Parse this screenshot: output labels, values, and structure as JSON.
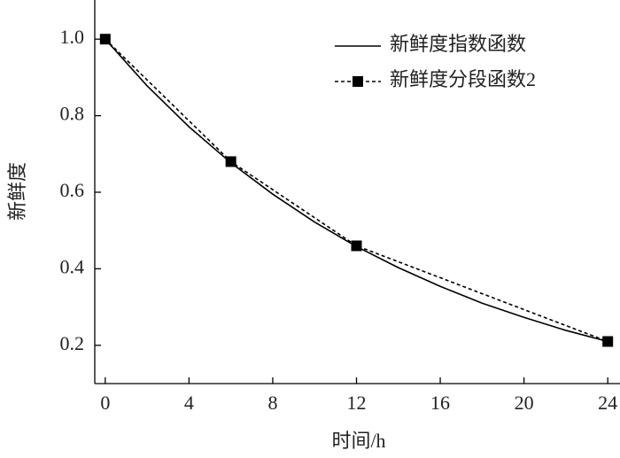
{
  "chart_data": {
    "type": "line",
    "xlabel": "时间/h",
    "ylabel": "新鲜度",
    "xlim": [
      -0.5,
      24.5
    ],
    "ylim": [
      0.1,
      1.1
    ],
    "xticks": [
      0,
      4,
      8,
      12,
      16,
      20,
      24
    ],
    "yticks": [
      0.2,
      0.4,
      0.6,
      0.8,
      {
        "value": 1,
        "label": "1.0"
      }
    ],
    "legend": "upper right",
    "series": [
      {
        "name": "新鲜度指数函数",
        "color": "#000000",
        "dash": false,
        "marker": false,
        "x": [
          0,
          2,
          4,
          6,
          8,
          10,
          12,
          14,
          16,
          18,
          20,
          22,
          24
        ],
        "values": [
          1,
          0.878,
          0.771,
          0.677,
          0.595,
          0.522,
          0.458,
          0.403,
          0.354,
          0.31,
          0.273,
          0.239,
          0.21
        ]
      },
      {
        "name": "新鲜度分段函数2",
        "color": "#000000",
        "dash": true,
        "marker": true,
        "x": [
          0,
          6,
          12,
          24
        ],
        "values": [
          1,
          0.68,
          0.46,
          0.21
        ]
      }
    ]
  }
}
